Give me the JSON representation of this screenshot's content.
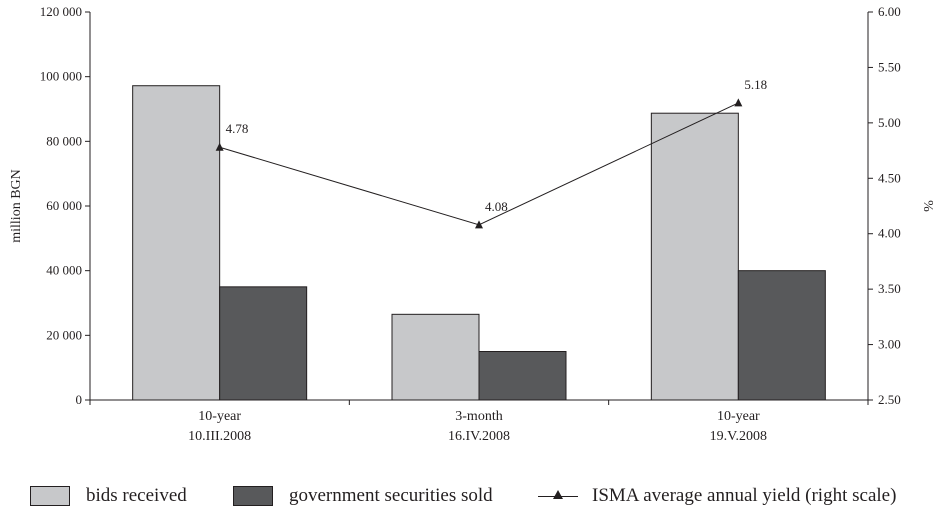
{
  "chart_data": {
    "type": "bar",
    "categories": [
      {
        "line1": "10-year",
        "line2": "10.III.2008"
      },
      {
        "line1": "3-month",
        "line2": "16.IV.2008"
      },
      {
        "line1": "10-year",
        "line2": "19.V.2008"
      }
    ],
    "series": [
      {
        "name": "bids received",
        "type": "bar",
        "axis": "left",
        "color": "#c7c8ca",
        "values": [
          97200,
          26500,
          88700
        ]
      },
      {
        "name": "government securities sold",
        "type": "bar",
        "axis": "left",
        "color": "#58595b",
        "values": [
          35000,
          15000,
          40000
        ]
      },
      {
        "name": "ISMA average annual yield (right scale)",
        "type": "line",
        "axis": "right",
        "color": "#231f20",
        "marker": "triangle",
        "values": [
          4.78,
          4.08,
          5.18
        ],
        "data_labels": [
          "4.78",
          "4.08",
          "5.18"
        ]
      }
    ],
    "ylabel": "million BGN",
    "y2label": "%",
    "ylim": [
      0,
      120000
    ],
    "y2lim": [
      2.5,
      6.0
    ],
    "yticks": [
      "0",
      "20 000",
      "40 000",
      "60 000",
      "80 000",
      "100 000",
      "120 000"
    ],
    "y2ticks": [
      "2.50",
      "3.00",
      "3.50",
      "4.00",
      "4.50",
      "5.00",
      "5.50",
      "6.00"
    ],
    "grid": false,
    "legend": "bottom"
  }
}
